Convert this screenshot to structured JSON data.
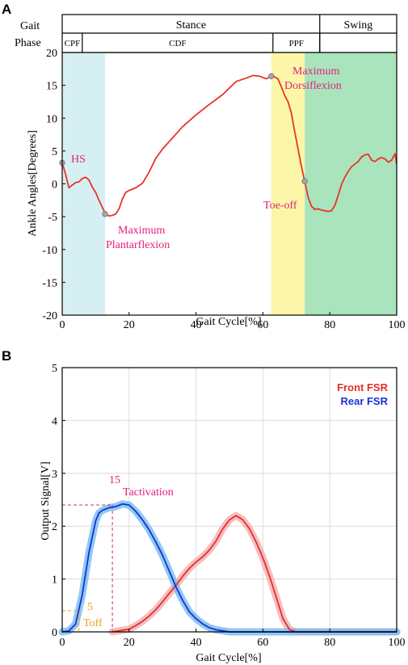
{
  "panels": {
    "a_label": "A",
    "b_label": "B"
  },
  "chart_data": [
    {
      "type": "line",
      "panel": "A",
      "xlabel": "Gait Cycle[%]",
      "ylabel": "Ankle Angles[Degrees]",
      "xlim": [
        0,
        100
      ],
      "ylim": [
        -20,
        20
      ],
      "xticks": [
        "0",
        "20",
        "40",
        "60",
        "80",
        "100"
      ],
      "yticks": [
        "20",
        "15",
        "10",
        "5",
        "0",
        "-5",
        "-10",
        "-15",
        "-20"
      ],
      "grid": false,
      "gait_phase_header": {
        "row_label_line1": "Gait",
        "row_label_line2": "Phase",
        "top_row": [
          {
            "label": "Stance",
            "from": 0,
            "to": 77
          },
          {
            "label": "Swing",
            "from": 77,
            "to": 100
          }
        ],
        "bottom_row": [
          {
            "label": "CPF",
            "from": 0,
            "to": 6
          },
          {
            "label": "CDF",
            "from": 6,
            "to": 63
          },
          {
            "label": "PPF",
            "from": 63,
            "to": 77
          },
          {
            "label": "",
            "from": 77,
            "to": 100
          }
        ]
      },
      "shaded_regions": [
        {
          "from": 0,
          "to": 12.8,
          "color": "#d6eff3"
        },
        {
          "from": 62.5,
          "to": 72.5,
          "color": "#fbf6a8"
        },
        {
          "from": 72.5,
          "to": 100,
          "color": "#a9e4bd"
        }
      ],
      "series": [
        {
          "color": "#e8342a",
          "x": [
            0,
            1,
            2,
            3,
            4,
            5,
            6,
            7,
            8,
            9,
            10,
            11,
            12,
            13,
            14,
            15,
            16,
            17,
            18,
            19,
            20,
            22,
            24,
            26,
            28,
            30,
            33,
            36,
            40,
            44,
            48,
            52,
            55,
            57,
            59,
            61,
            62.5,
            63.5,
            64.5,
            65.5,
            66.5,
            67.5,
            68.5,
            69.5,
            70.5,
            71.5,
            72.5,
            73.5,
            74.5,
            75.5,
            76.5,
            77.5,
            78.5,
            79.5,
            80.5,
            81.5,
            82.5,
            83.5,
            84.5,
            85.5,
            86.5,
            87.5,
            88.5,
            89.5,
            90.5,
            91.5,
            92.5,
            93.5,
            94.5,
            95.5,
            96.5,
            97.5,
            98.5,
            99.5,
            100
          ],
          "y": [
            3.2,
            1.5,
            -0.6,
            -0.2,
            0.2,
            0.3,
            0.8,
            1.0,
            0.6,
            -0.5,
            -1.3,
            -2.5,
            -3.6,
            -4.6,
            -4.9,
            -4.8,
            -4.6,
            -3.8,
            -2.3,
            -1.3,
            -1.0,
            -0.6,
            0.1,
            1.8,
            3.9,
            5.3,
            7.0,
            8.7,
            10.5,
            12.1,
            13.6,
            15.6,
            16.1,
            16.5,
            16.4,
            16.0,
            16.4,
            16.3,
            16.0,
            14.8,
            13.5,
            12.5,
            10.8,
            8.0,
            5.3,
            2.7,
            0.4,
            -2.0,
            -3.4,
            -3.9,
            -3.8,
            -4.0,
            -4.1,
            -4.2,
            -4.1,
            -3.3,
            -1.8,
            -0.1,
            1.0,
            1.9,
            2.6,
            3.0,
            3.4,
            4.1,
            4.4,
            4.5,
            3.6,
            3.4,
            3.8,
            4.0,
            3.8,
            3.3,
            3.6,
            4.6,
            3.0
          ]
        }
      ],
      "markers": [
        {
          "x": 0,
          "y": 3.2
        },
        {
          "x": 12.8,
          "y": -4.6
        },
        {
          "x": 62.5,
          "y": 16.4
        },
        {
          "x": 72.5,
          "y": 0.4
        }
      ],
      "annotations": {
        "hs": "HS",
        "max_plantar_line1": "Maximum",
        "max_plantar_line2": "Plantarflexion",
        "max_dorsi_line1": "Maximum",
        "max_dorsi_line2": "Dorsiflexion",
        "toe_off": "Toe-off"
      }
    },
    {
      "type": "line",
      "panel": "B",
      "xlabel": "Gait Cycle[%]",
      "ylabel": "Output Signal[V]",
      "xlim": [
        0,
        100
      ],
      "ylim": [
        0,
        5
      ],
      "xticks": [
        "0",
        "20",
        "40",
        "60",
        "80",
        "100"
      ],
      "yticks": [
        "5",
        "4",
        "3",
        "2",
        "1",
        "0"
      ],
      "grid": true,
      "legend_position": "top-right",
      "series": [
        {
          "name": "Front FSR",
          "color": "#e62f2a",
          "band_color": "#f4b3b5",
          "x": [
            15,
            17,
            20,
            22,
            24,
            26,
            28,
            30,
            32,
            34,
            36,
            38,
            40,
            42,
            44,
            46,
            48,
            50,
            52,
            54,
            56,
            58,
            60,
            62,
            64,
            66,
            68,
            70,
            72,
            75,
            80,
            85,
            90,
            95,
            100
          ],
          "y": [
            0,
            0.02,
            0.05,
            0.12,
            0.2,
            0.3,
            0.42,
            0.57,
            0.73,
            0.88,
            1.05,
            1.2,
            1.32,
            1.42,
            1.55,
            1.72,
            1.95,
            2.12,
            2.2,
            2.12,
            1.95,
            1.7,
            1.4,
            1.05,
            0.65,
            0.25,
            0.04,
            0,
            0,
            0,
            0,
            0,
            0,
            0,
            0
          ]
        },
        {
          "name": "Rear FSR",
          "color": "#1d2fd6",
          "band_color": "#7bbff0",
          "x": [
            0,
            2,
            4,
            6,
            8,
            10,
            11,
            12,
            14,
            16,
            18,
            20,
            22,
            24,
            26,
            28,
            30,
            32,
            34,
            36,
            38,
            40,
            42,
            44,
            46,
            48,
            50,
            55,
            60,
            70,
            80,
            90,
            100
          ],
          "y": [
            0,
            0.02,
            0.15,
            0.7,
            1.5,
            2.1,
            2.25,
            2.3,
            2.35,
            2.37,
            2.42,
            2.4,
            2.28,
            2.12,
            1.93,
            1.7,
            1.45,
            1.15,
            0.85,
            0.6,
            0.38,
            0.25,
            0.15,
            0.08,
            0.04,
            0.02,
            0,
            0,
            0,
            0,
            0,
            0,
            0
          ]
        }
      ],
      "annotations": {
        "t_activation_value": "15",
        "t_activation_label": "Tactivation",
        "t_off_value": "5",
        "t_off_label": "Toff",
        "t_activation_x": 15,
        "t_activation_y": 2.4,
        "t_off_x": 5,
        "t_off_y": 0.4
      }
    }
  ],
  "colors": {
    "axis": "#000000",
    "annotation_magenta": "#e6207a",
    "annotation_orange": "#f0a01c",
    "grid": "#dcdcdc"
  }
}
